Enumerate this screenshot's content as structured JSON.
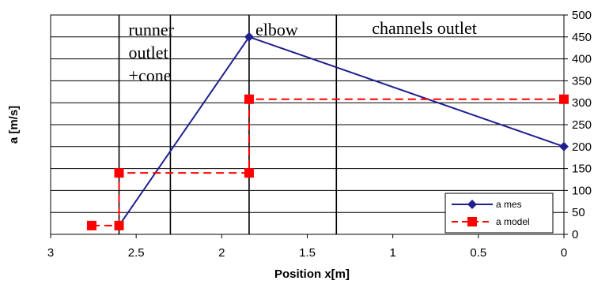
{
  "chart_data": {
    "type": "line",
    "xlabel": "Position x[m]",
    "ylabel": "a [m/s]",
    "xlim": [
      3,
      0
    ],
    "ylim": [
      0,
      500
    ],
    "x_ticks": [
      3,
      2.5,
      2,
      1.5,
      1,
      0.5,
      0
    ],
    "x_tick_labels": [
      "3",
      "2.5",
      "2",
      "1.5",
      "1",
      "0.5",
      "0"
    ],
    "y_ticks": [
      0,
      50,
      100,
      150,
      200,
      250,
      300,
      350,
      400,
      450,
      500
    ],
    "y_tick_labels": [
      "0",
      "50",
      "100",
      "150",
      "200",
      "250",
      "300",
      "350",
      "400",
      "450",
      "500"
    ],
    "grid": true,
    "legend_position": "bottom-right",
    "region_lines_x": [
      2.6,
      2.3,
      1.84,
      1.33
    ],
    "annotations": [
      {
        "text": "runner",
        "x": 2.6
      },
      {
        "text": "outlet",
        "x": 2.6
      },
      {
        "text": "+cone",
        "x": 2.6
      },
      {
        "text": "elbow",
        "x": 1.84
      },
      {
        "text": "channels outlet",
        "x": 1.33
      }
    ],
    "series": [
      {
        "name": "a mes",
        "color": "#1f1f8f",
        "marker": "diamond",
        "style": "solid",
        "points": [
          {
            "x": 2.6,
            "y": 20
          },
          {
            "x": 1.84,
            "y": 450
          },
          {
            "x": 0,
            "y": 200
          }
        ]
      },
      {
        "name": "a model",
        "color": "#ff0000",
        "marker": "square",
        "style": "dashed",
        "points": [
          {
            "x": 2.76,
            "y": 20
          },
          {
            "x": 2.6,
            "y": 20
          },
          {
            "x": 2.6,
            "y": 140
          },
          {
            "x": 1.84,
            "y": 140
          },
          {
            "x": 1.84,
            "y": 308
          },
          {
            "x": 0,
            "y": 308
          }
        ]
      }
    ]
  }
}
